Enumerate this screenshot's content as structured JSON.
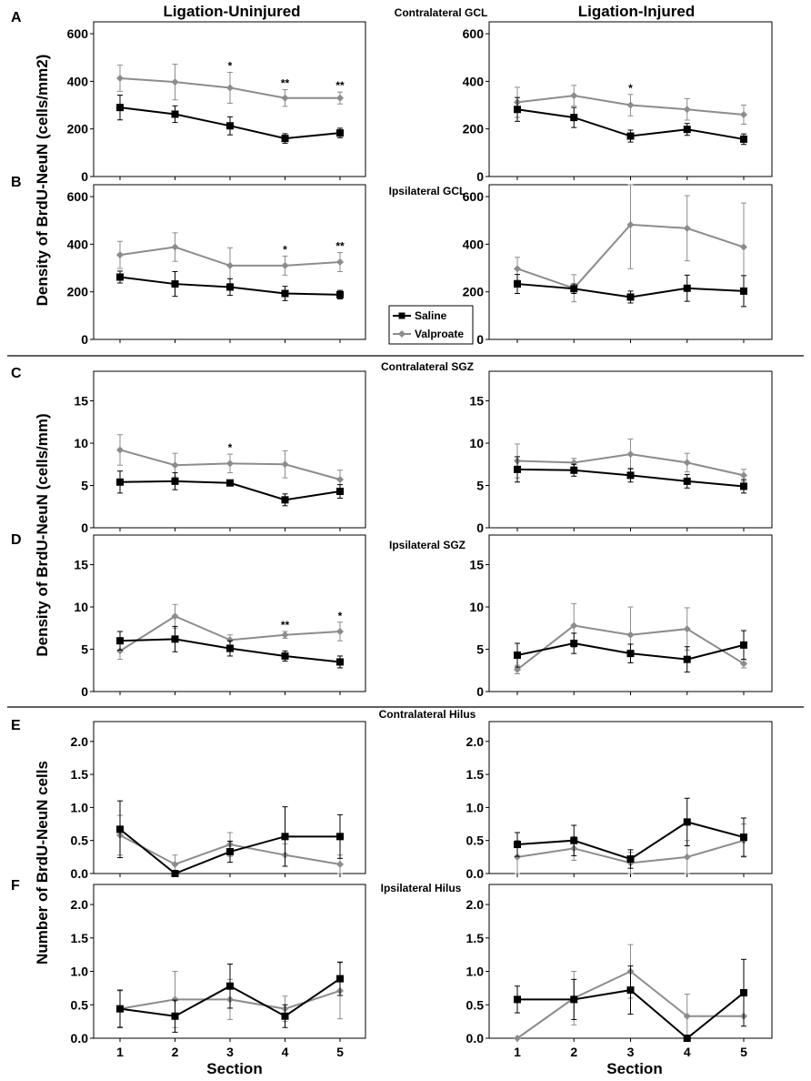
{
  "figure": {
    "column_titles": [
      "Ligation-Uninjured",
      "Ligation-Injured"
    ],
    "regions": [
      "Contralateral GCL",
      "Ipsilateral GCL",
      "Contralateral SGZ",
      "Ipsilateral SGZ",
      "Contralateral Hilus",
      "Ipsilateral Hilus"
    ],
    "panel_letters": [
      "A",
      "B",
      "C",
      "D",
      "E",
      "F"
    ],
    "ylabels": [
      "Density of BrdU-NeuN (cells/mm2)",
      "Density of BrdU-NeuN (cells/mm)",
      "Number of BrdU-NeuN cells"
    ],
    "xlabel": "Section",
    "legend": [
      "Saline",
      "Valproate"
    ],
    "colors": {
      "saline": "#000000",
      "valproate": "#8c8c8c"
    }
  },
  "chart_data": [
    {
      "id": "A-uninjured",
      "type": "line",
      "region": "Contralateral GCL",
      "column": "Ligation-Uninjured",
      "x": [
        1,
        2,
        3,
        4,
        5
      ],
      "ylim": [
        0,
        650
      ],
      "yticks": [
        "0",
        "200",
        "400",
        "600"
      ],
      "series": [
        {
          "name": "Saline",
          "values": [
            290,
            262,
            213,
            160,
            183
          ],
          "errors": [
            52,
            35,
            38,
            20,
            20
          ]
        },
        {
          "name": "Valproate",
          "values": [
            413,
            397,
            373,
            330,
            330
          ],
          "errors": [
            55,
            75,
            65,
            35,
            25
          ]
        }
      ],
      "stars": [
        "",
        "",
        "*",
        "**",
        "**"
      ]
    },
    {
      "id": "A-injured",
      "type": "line",
      "region": "Contralateral GCL",
      "column": "Ligation-Injured",
      "x": [
        1,
        2,
        3,
        4,
        5
      ],
      "ylim": [
        0,
        650
      ],
      "yticks": [
        "0",
        "200",
        "400",
        "600"
      ],
      "series": [
        {
          "name": "Saline",
          "values": [
            282,
            248,
            170,
            198,
            157
          ],
          "errors": [
            50,
            42,
            25,
            25,
            22
          ]
        },
        {
          "name": "Valproate",
          "values": [
            312,
            340,
            300,
            282,
            260
          ],
          "errors": [
            63,
            43,
            45,
            45,
            40
          ]
        }
      ],
      "stars": [
        "",
        "",
        "*",
        "",
        ""
      ]
    },
    {
      "id": "B-uninjured",
      "type": "line",
      "region": "Ipsilateral GCL",
      "column": "Ligation-Uninjured",
      "x": [
        1,
        2,
        3,
        4,
        5
      ],
      "ylim": [
        0,
        650
      ],
      "yticks": [
        "0",
        "200",
        "400",
        "600"
      ],
      "series": [
        {
          "name": "Saline",
          "values": [
            262,
            233,
            220,
            193,
            188
          ],
          "errors": [
            25,
            52,
            35,
            30,
            18
          ]
        },
        {
          "name": "Valproate",
          "values": [
            355,
            388,
            310,
            310,
            325
          ],
          "errors": [
            57,
            60,
            75,
            40,
            40
          ]
        }
      ],
      "stars": [
        "",
        "",
        "",
        "*",
        "**"
      ]
    },
    {
      "id": "B-injured",
      "type": "line",
      "region": "Ipsilateral GCL",
      "column": "Ligation-Injured",
      "x": [
        1,
        2,
        3,
        4,
        5
      ],
      "ylim": [
        0,
        650
      ],
      "yticks": [
        "0",
        "200",
        "400",
        "600"
      ],
      "series": [
        {
          "name": "Saline",
          "values": [
            233,
            213,
            178,
            215,
            203
          ],
          "errors": [
            40,
            20,
            25,
            55,
            65
          ]
        },
        {
          "name": "Valproate",
          "values": [
            297,
            215,
            482,
            467,
            388
          ],
          "errors": [
            48,
            57,
            185,
            137,
            185
          ]
        }
      ],
      "stars": [
        "",
        "",
        "",
        "",
        ""
      ]
    },
    {
      "id": "C-uninjured",
      "type": "line",
      "region": "Contralateral SGZ",
      "column": "Ligation-Uninjured",
      "x": [
        1,
        2,
        3,
        4,
        5
      ],
      "ylim": [
        0,
        18.5
      ],
      "yticks": [
        "0",
        "5",
        "10",
        "15"
      ],
      "series": [
        {
          "name": "Saline",
          "values": [
            5.4,
            5.5,
            5.3,
            3.3,
            4.3
          ],
          "errors": [
            1.3,
            1.0,
            0.3,
            0.7,
            0.8
          ]
        },
        {
          "name": "Valproate",
          "values": [
            9.2,
            7.4,
            7.6,
            7.5,
            5.7
          ],
          "errors": [
            1.8,
            1.4,
            1.1,
            1.6,
            1.1
          ]
        }
      ],
      "stars": [
        "",
        "",
        "*",
        "",
        ""
      ]
    },
    {
      "id": "C-injured",
      "type": "line",
      "region": "Contralateral SGZ",
      "column": "Ligation-Injured",
      "x": [
        1,
        2,
        3,
        4,
        5
      ],
      "ylim": [
        0,
        18.5
      ],
      "yticks": [
        "0",
        "5",
        "10",
        "15"
      ],
      "series": [
        {
          "name": "Saline",
          "values": [
            6.9,
            6.8,
            6.2,
            5.5,
            4.9
          ],
          "errors": [
            1.5,
            0.7,
            0.8,
            0.8,
            0.8
          ]
        },
        {
          "name": "Valproate",
          "values": [
            7.9,
            7.7,
            8.7,
            7.7,
            6.2
          ],
          "errors": [
            2.0,
            0.5,
            1.8,
            1.1,
            0.7
          ]
        }
      ],
      "stars": [
        "",
        "",
        "",
        "",
        ""
      ]
    },
    {
      "id": "D-uninjured",
      "type": "line",
      "region": "Ipsilateral SGZ",
      "column": "Ligation-Uninjured",
      "x": [
        1,
        2,
        3,
        4,
        5
      ],
      "ylim": [
        0,
        18.5
      ],
      "yticks": [
        "0",
        "5",
        "10",
        "15"
      ],
      "series": [
        {
          "name": "Saline",
          "values": [
            6.0,
            6.2,
            5.1,
            4.2,
            3.5
          ],
          "errors": [
            1.1,
            1.5,
            0.9,
            0.6,
            0.7
          ]
        },
        {
          "name": "Valproate",
          "values": [
            4.8,
            8.9,
            6.1,
            6.7,
            7.1
          ],
          "errors": [
            1.0,
            1.4,
            0.6,
            0.4,
            1.1
          ]
        }
      ],
      "stars": [
        "",
        "",
        "",
        "**",
        "*"
      ]
    },
    {
      "id": "D-injured",
      "type": "line",
      "region": "Ipsilateral SGZ",
      "column": "Ligation-Injured",
      "x": [
        1,
        2,
        3,
        4,
        5
      ],
      "ylim": [
        0,
        18.5
      ],
      "yticks": [
        "0",
        "5",
        "10",
        "15"
      ],
      "series": [
        {
          "name": "Saline",
          "values": [
            4.3,
            5.7,
            4.5,
            3.8,
            5.5
          ],
          "errors": [
            1.4,
            1.2,
            1.1,
            1.5,
            1.7
          ]
        },
        {
          "name": "Valproate",
          "values": [
            2.6,
            7.8,
            6.7,
            7.4,
            3.3
          ],
          "errors": [
            0.5,
            2.6,
            3.3,
            2.5,
            0.5
          ]
        }
      ],
      "stars": [
        "",
        "",
        "",
        "",
        ""
      ]
    },
    {
      "id": "E-uninjured",
      "type": "line",
      "region": "Contralateral Hilus",
      "column": "Ligation-Uninjured",
      "x": [
        1,
        2,
        3,
        4,
        5
      ],
      "ylim": [
        0,
        2.3
      ],
      "yticks": [
        "0.0",
        "0.5",
        "1.0",
        "1.5",
        "2.0"
      ],
      "series": [
        {
          "name": "Saline",
          "values": [
            0.67,
            0.0,
            0.33,
            0.56,
            0.56
          ],
          "errors": [
            0.43,
            0.0,
            0.16,
            0.45,
            0.33
          ]
        },
        {
          "name": "Valproate",
          "values": [
            0.58,
            0.14,
            0.44,
            0.28,
            0.14
          ],
          "errors": [
            0.3,
            0.14,
            0.18,
            0.17,
            0.14
          ]
        }
      ],
      "stars": [
        "",
        "",
        "",
        "",
        ""
      ]
    },
    {
      "id": "E-injured",
      "type": "line",
      "region": "Contralateral Hilus",
      "column": "Ligation-Injured",
      "x": [
        1,
        2,
        3,
        4,
        5
      ],
      "ylim": [
        0,
        2.3
      ],
      "yticks": [
        "0.0",
        "0.5",
        "1.0",
        "1.5",
        "2.0"
      ],
      "series": [
        {
          "name": "Saline",
          "values": [
            0.44,
            0.5,
            0.22,
            0.78,
            0.55
          ],
          "errors": [
            0.18,
            0.23,
            0.14,
            0.36,
            0.29
          ]
        },
        {
          "name": "Valproate",
          "values": [
            0.25,
            0.38,
            0.16,
            0.25,
            0.5
          ],
          "errors": [
            0.25,
            0.18,
            0.16,
            0.25,
            0.25
          ]
        }
      ],
      "stars": [
        "",
        "",
        "",
        "",
        ""
      ]
    },
    {
      "id": "F-uninjured",
      "type": "line",
      "region": "Ipsilateral Hilus",
      "column": "Ligation-Uninjured",
      "x": [
        1,
        2,
        3,
        4,
        5
      ],
      "ylim": [
        0,
        2.3
      ],
      "yticks": [
        "0.0",
        "0.5",
        "1.0",
        "1.5",
        "2.0"
      ],
      "series": [
        {
          "name": "Saline",
          "values": [
            0.44,
            0.33,
            0.78,
            0.33,
            0.89
          ],
          "errors": [
            0.28,
            0.24,
            0.33,
            0.17,
            0.25
          ]
        },
        {
          "name": "Valproate",
          "values": [
            0.44,
            0.58,
            0.58,
            0.44,
            0.71
          ],
          "errors": [
            0.27,
            0.42,
            0.3,
            0.19,
            0.42
          ]
        }
      ],
      "stars": [
        "",
        "",
        "",
        "",
        ""
      ]
    },
    {
      "id": "F-injured",
      "type": "line",
      "region": "Ipsilateral Hilus",
      "column": "Ligation-Injured",
      "x": [
        1,
        2,
        3,
        4,
        5
      ],
      "ylim": [
        0,
        2.3
      ],
      "yticks": [
        "0.0",
        "0.5",
        "1.0",
        "1.5",
        "2.0"
      ],
      "series": [
        {
          "name": "Saline",
          "values": [
            0.58,
            0.58,
            0.72,
            0.0,
            0.68
          ],
          "errors": [
            0.2,
            0.3,
            0.36,
            0.0,
            0.5
          ]
        },
        {
          "name": "Valproate",
          "values": [
            0.0,
            0.6,
            1.0,
            0.33,
            0.33
          ],
          "errors": [
            0.0,
            0.4,
            0.4,
            0.33,
            0.0
          ]
        }
      ],
      "stars": [
        "",
        "",
        "",
        "",
        ""
      ]
    }
  ]
}
